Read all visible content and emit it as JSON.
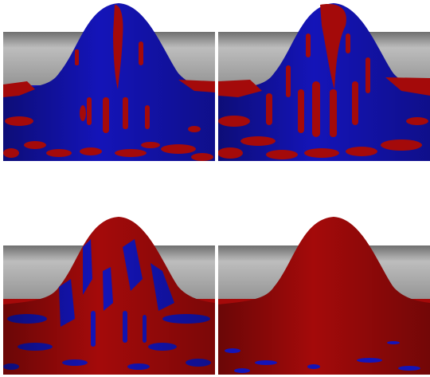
{
  "figure": {
    "panel_count": 4,
    "background_color": "#ffffff",
    "panels": [
      {
        "id": "p1",
        "description_key": "mound-mostly-blue",
        "red_fraction": 0.25
      },
      {
        "id": "p2",
        "description_key": "mound-blue-red-mix",
        "red_fraction": 0.4
      },
      {
        "id": "p3",
        "description_key": "mound-red-dominant-streaks",
        "red_fraction": 0.65
      },
      {
        "id": "p4",
        "description_key": "mound-almost-all-red",
        "red_fraction": 0.95
      }
    ],
    "colors": {
      "red_surface": "#a40a0a",
      "dark_red": "#6c0303",
      "blue_surface": "#1414b8",
      "dark_blue": "#0a0a6a",
      "backdrop_top": "#6f6f6f",
      "backdrop_mid": "#bcbcbc",
      "backdrop_bottom": "#8c8c8c"
    }
  }
}
